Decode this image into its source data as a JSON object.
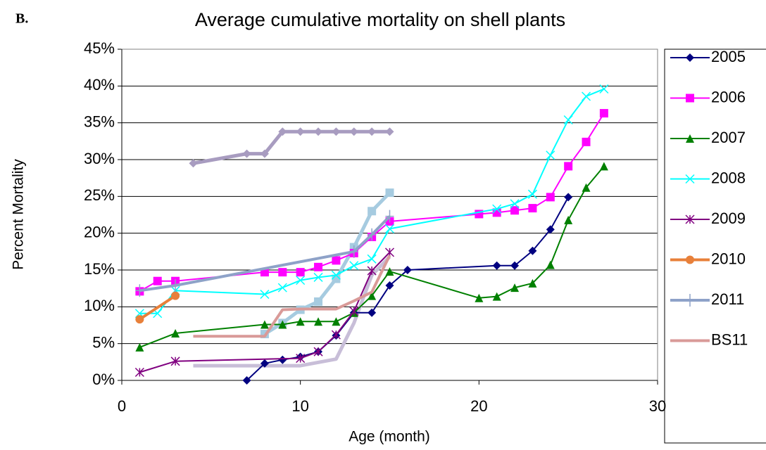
{
  "chart_data": {
    "type": "line",
    "panel_label": "B.",
    "title": "Average cumulative mortality on shell plants",
    "x_label": "Age (month)",
    "y_label": "Percent Mortality",
    "xlim": [
      0,
      30
    ],
    "xticks": [
      0,
      10,
      20,
      30
    ],
    "ylim": [
      0,
      45
    ],
    "yticks": [
      {
        "value": 0,
        "label": "0%"
      },
      {
        "value": 5,
        "label": "5%"
      },
      {
        "value": 10,
        "label": "10%"
      },
      {
        "value": 15,
        "label": "15%"
      },
      {
        "value": 20,
        "label": "20%"
      },
      {
        "value": 25,
        "label": "25%"
      },
      {
        "value": 30,
        "label": "30%"
      },
      {
        "value": 35,
        "label": "35%"
      },
      {
        "value": 40,
        "label": "40%"
      },
      {
        "value": 45,
        "label": "45%"
      }
    ],
    "grid": true,
    "legend": "right",
    "series": [
      {
        "color": "#c8bed8",
        "marker": "none",
        "width": 5,
        "x": [
          4,
          8,
          10,
          12,
          13,
          14,
          15
        ],
        "values": [
          2.0,
          2.0,
          2.0,
          2.9,
          7.8,
          14.3,
          16.8
        ]
      },
      {
        "color": "#a89cc0",
        "marker": "diamond",
        "width": 5,
        "x": [
          4,
          7,
          8,
          9,
          10,
          11,
          12,
          13,
          14,
          15
        ],
        "values": [
          29.5,
          30.8,
          30.8,
          33.8,
          33.8,
          33.8,
          33.8,
          33.8,
          33.8,
          33.8
        ]
      },
      {
        "color": "#a6cbe0",
        "marker": "square",
        "width": 5,
        "x": [
          8,
          9,
          10,
          11,
          12,
          13,
          14,
          15
        ],
        "values": [
          6.3,
          7.8,
          9.6,
          10.7,
          13.8,
          18.1,
          23.0,
          25.5
        ]
      },
      {
        "name": "2005",
        "color": "#000080",
        "marker": "diamond",
        "width": 2,
        "x": [
          7,
          8,
          9,
          10,
          11,
          12,
          13,
          14,
          15,
          16,
          21,
          22,
          23,
          24,
          25
        ],
        "values": [
          0,
          2.3,
          2.8,
          3.2,
          3.9,
          6.1,
          9.2,
          9.2,
          12.9,
          15.0,
          15.6,
          15.6,
          17.6,
          20.5,
          24.9
        ]
      },
      {
        "name": "2006",
        "color": "#ff00ff",
        "marker": "square",
        "width": 2,
        "x": [
          1,
          2,
          3,
          8,
          9,
          10,
          11,
          12,
          13,
          14,
          15,
          20,
          21,
          22,
          23,
          24,
          25,
          26,
          27
        ],
        "values": [
          12.1,
          13.5,
          13.5,
          14.7,
          14.7,
          14.7,
          15.4,
          16.3,
          17.3,
          19.5,
          21.6,
          22.6,
          22.8,
          23.1,
          23.4,
          24.9,
          29.1,
          32.4,
          36.3
        ]
      },
      {
        "name": "2007",
        "color": "#008000",
        "marker": "triangle",
        "width": 2,
        "x": [
          1,
          3,
          8,
          9,
          10,
          11,
          12,
          13,
          14,
          15,
          20,
          21,
          22,
          23,
          24,
          25,
          26,
          27
        ],
        "values": [
          4.5,
          6.4,
          7.6,
          7.6,
          8.0,
          8.0,
          8.0,
          9.2,
          11.5,
          14.8,
          11.2,
          11.4,
          12.6,
          13.2,
          15.7,
          21.8,
          26.2,
          29.1
        ]
      },
      {
        "name": "2008",
        "color": "#00ffff",
        "marker": "x",
        "width": 2,
        "x": [
          1,
          2,
          3,
          8,
          9,
          10,
          11,
          12,
          13,
          14,
          15,
          21,
          22,
          23,
          24,
          25,
          26,
          27
        ],
        "values": [
          9.1,
          9.1,
          12.2,
          11.7,
          12.6,
          13.6,
          14.0,
          14.3,
          15.6,
          16.5,
          20.6,
          23.3,
          24.0,
          25.3,
          30.6,
          35.4,
          38.6,
          39.6
        ]
      },
      {
        "name": "2009",
        "color": "#800080",
        "marker": "star",
        "width": 2,
        "x": [
          1,
          3,
          10,
          11,
          12,
          13,
          14,
          15
        ],
        "values": [
          1.1,
          2.6,
          3.0,
          3.9,
          6.2,
          9.4,
          14.9,
          17.4
        ]
      },
      {
        "name": "2010",
        "color": "#e8803a",
        "marker": "circle",
        "width": 4,
        "x": [
          1,
          3
        ],
        "values": [
          8.3,
          11.5
        ]
      },
      {
        "name": "2011",
        "color": "#8ea2c8",
        "marker": "plus",
        "width": 4,
        "x": [
          1,
          3,
          13,
          14,
          15
        ],
        "values": [
          12.2,
          12.9,
          17.5,
          19.8,
          22.3
        ]
      },
      {
        "name": "BS11",
        "color": "#d99a98",
        "marker": "none",
        "width": 4,
        "x": [
          4,
          8,
          9,
          10,
          11,
          12,
          13,
          14,
          15
        ],
        "values": [
          6.0,
          6.0,
          9.6,
          9.7,
          9.7,
          9.7,
          10.8,
          12.0,
          17.0
        ]
      }
    ]
  }
}
